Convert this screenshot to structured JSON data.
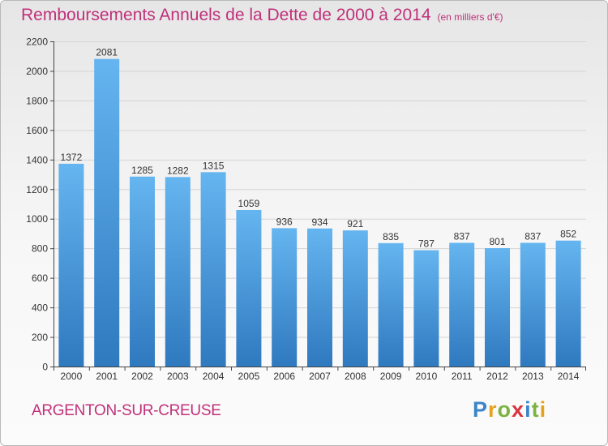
{
  "header": {
    "title": "Remboursements Annuels de la Dette de 2000 à 2014",
    "subtitle": "(en milliers d'€)"
  },
  "footer": {
    "city": "ARGENTON-SUR-CREUSE",
    "logo_letters": [
      "P",
      "r",
      "o",
      "x",
      "i",
      "t",
      "i"
    ],
    "logo_colors": [
      "#3a86c8",
      "#e7a21b",
      "#7cb342",
      "#d9333f",
      "#3a86c8",
      "#7cb342",
      "#e7a21b"
    ]
  },
  "chart_data": {
    "type": "bar",
    "title": "Remboursements Annuels de la Dette de 2000 à 2014",
    "ylabel": "en milliers d'€",
    "xlabel": "",
    "categories": [
      "2000",
      "2001",
      "2002",
      "2003",
      "2004",
      "2005",
      "2006",
      "2007",
      "2008",
      "2009",
      "2010",
      "2011",
      "2012",
      "2013",
      "2014"
    ],
    "values": [
      1372,
      2081,
      1285,
      1282,
      1315,
      1059,
      936,
      934,
      921,
      835,
      787,
      837,
      801,
      837,
      852
    ],
    "ylim": [
      0,
      2200
    ],
    "yticks": [
      0,
      200,
      400,
      600,
      800,
      1000,
      1200,
      1400,
      1600,
      1800,
      2000,
      2200
    ],
    "grid": true,
    "colors": {
      "bar_top": "#65b5f0",
      "bar_bottom": "#2f79bf",
      "grid": "#d4d4d4",
      "axis": "#444444"
    }
  }
}
